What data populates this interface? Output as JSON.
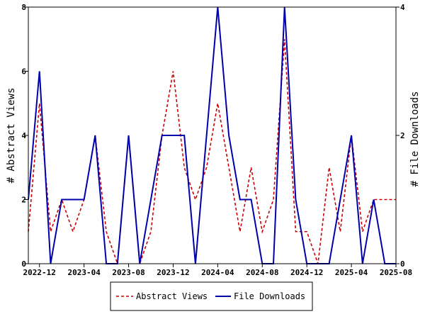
{
  "chart_data": {
    "type": "line",
    "x": [
      "2022-11",
      "2022-12",
      "2023-01",
      "2023-02",
      "2023-03",
      "2023-04",
      "2023-05",
      "2023-06",
      "2023-07",
      "2023-08",
      "2023-09",
      "2023-10",
      "2023-11",
      "2023-12",
      "2024-01",
      "2024-02",
      "2024-03",
      "2024-04",
      "2024-05",
      "2024-06",
      "2024-07",
      "2024-08",
      "2024-09",
      "2024-10",
      "2024-11",
      "2024-12",
      "2025-01",
      "2025-02",
      "2025-03",
      "2025-04",
      "2025-05",
      "2025-06",
      "2025-07",
      "2025-08"
    ],
    "x_ticks": [
      "2022-12",
      "2023-04",
      "2023-08",
      "2023-12",
      "2024-04",
      "2024-08",
      "2024-12",
      "2025-04",
      "2025-08"
    ],
    "series": [
      {
        "name": "Abstract Views",
        "axis": "left",
        "color": "#cc0000",
        "dash": true,
        "values": [
          1,
          5,
          1,
          2,
          1,
          2,
          4,
          1,
          0,
          4,
          0,
          1,
          4,
          6,
          3,
          2,
          3,
          5,
          3,
          1,
          3,
          1,
          2,
          7,
          1,
          1,
          0,
          3,
          1,
          4,
          1,
          2,
          2,
          2
        ]
      },
      {
        "name": "File Downloads",
        "axis": "right",
        "color": "#0000aa",
        "dash": false,
        "values": [
          1,
          3,
          0,
          1,
          1,
          1,
          2,
          0,
          0,
          2,
          0,
          1,
          2,
          2,
          2,
          0,
          2,
          4,
          2,
          1,
          1,
          0,
          0,
          4,
          1,
          0,
          0,
          0,
          1,
          2,
          0,
          1,
          0,
          0
        ]
      }
    ],
    "y_left": {
      "label": "# Abstract Views",
      "lim": [
        0,
        8
      ],
      "ticks": [
        "0",
        "2",
        "4",
        "6",
        "8"
      ]
    },
    "y_right": {
      "label": "# File Downloads",
      "lim": [
        0,
        4
      ],
      "ticks": [
        "0",
        "2",
        "4"
      ]
    },
    "legend": {
      "placement": "bottom-center",
      "entries": [
        "Abstract Views",
        "File Downloads"
      ]
    }
  }
}
